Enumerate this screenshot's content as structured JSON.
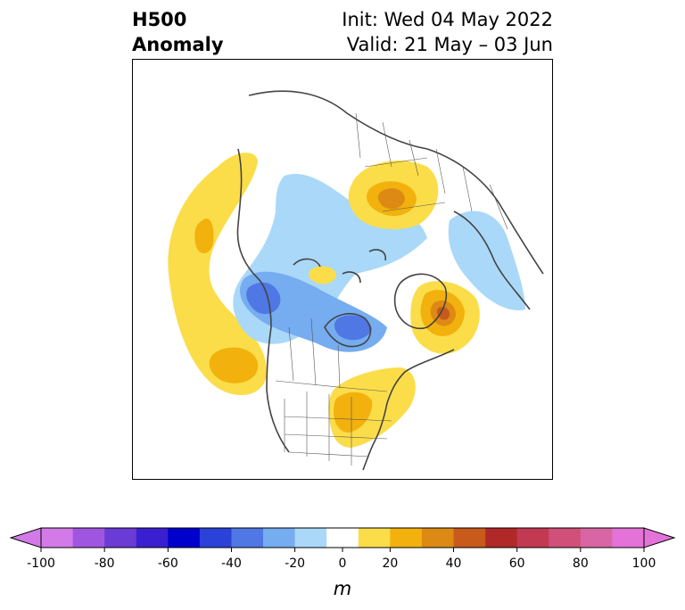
{
  "title": {
    "left_line1": "H500",
    "left_line2": "Anomaly",
    "right_line1": "Init: Wed 04 May 2022",
    "right_line2": "Valid: 21 May – 03 Jun"
  },
  "map": {
    "projection": "polar-stereographic-north",
    "region": "Northern Hemisphere / North America"
  },
  "colorbar": {
    "units": "m",
    "extend": "both",
    "tick_labels": [
      "-100",
      "-80",
      "-60",
      "-40",
      "-20",
      "0",
      "20",
      "40",
      "60",
      "80",
      "100"
    ],
    "levels": [
      -100,
      -90,
      -80,
      -70,
      -60,
      -50,
      -40,
      -30,
      -20,
      -10,
      10,
      20,
      30,
      40,
      50,
      60,
      70,
      80,
      90,
      100
    ],
    "colors": [
      "#d27be8",
      "#a055e0",
      "#6b3bd6",
      "#3a1fd0",
      "#0000cc",
      "#2a42d8",
      "#4f78e4",
      "#76acf0",
      "#aad8f8",
      "#ffffff",
      "#fbdd4a",
      "#f2b10d",
      "#dc8a14",
      "#c85a1c",
      "#b02828",
      "#c23a52",
      "#d0507a",
      "#d866a4",
      "#e373d8"
    ],
    "under_color": "#d27be8",
    "over_color": "#e373d8"
  }
}
